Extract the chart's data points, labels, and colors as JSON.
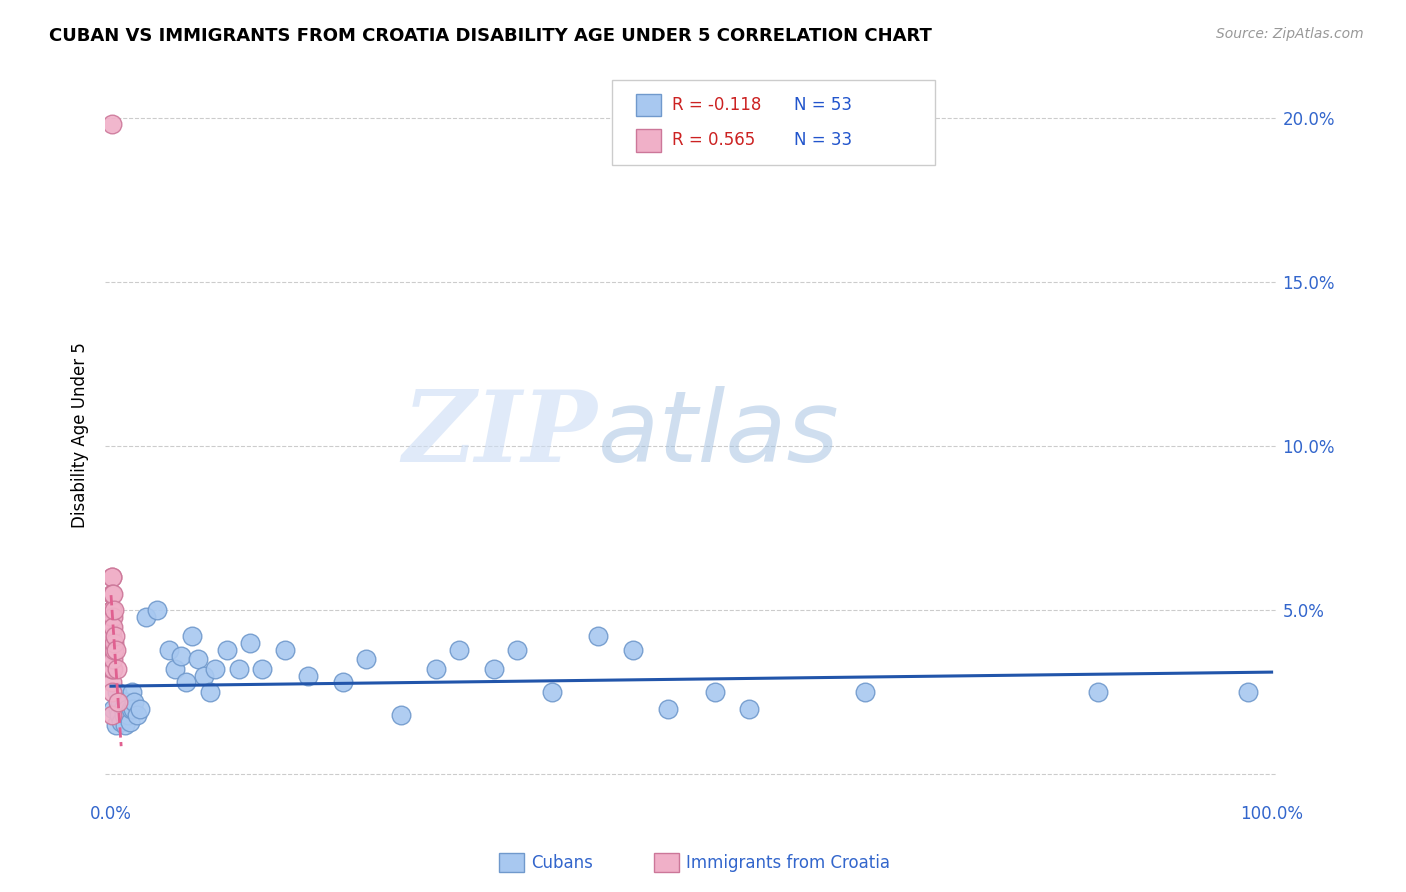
{
  "title": "CUBAN VS IMMIGRANTS FROM CROATIA DISABILITY AGE UNDER 5 CORRELATION CHART",
  "source": "Source: ZipAtlas.com",
  "tick_color": "#3366cc",
  "ylabel": "Disability Age Under 5",
  "xlim": [
    -0.005,
    1.005
  ],
  "ylim": [
    -0.008,
    0.215
  ],
  "yticks": [
    0.0,
    0.05,
    0.1,
    0.15,
    0.2
  ],
  "ytick_labels": [
    "",
    "5.0%",
    "10.0%",
    "15.0%",
    "20.0%"
  ],
  "xticks": [
    0.0,
    1.0
  ],
  "xtick_labels": [
    "0.0%",
    "100.0%"
  ],
  "grid_color": "#cccccc",
  "background_color": "#ffffff",
  "watermark_zip": "ZIP",
  "watermark_atlas": "atlas",
  "legend_r1": "R = -0.118",
  "legend_n1": "N = 53",
  "legend_r2": "R = 0.565",
  "legend_n2": "N = 33",
  "cubans_color": "#a8c8f0",
  "cubans_edge_color": "#7099cc",
  "croatia_color": "#f0b0c8",
  "croatia_edge_color": "#cc7799",
  "cubans_trendline_color": "#2255aa",
  "croatia_trendline_color": "#e06090",
  "cubans_x": [
    0.002,
    0.004,
    0.005,
    0.006,
    0.007,
    0.008,
    0.009,
    0.01,
    0.011,
    0.012,
    0.013,
    0.014,
    0.015,
    0.016,
    0.017,
    0.018,
    0.019,
    0.02,
    0.022,
    0.025,
    0.03,
    0.04,
    0.05,
    0.055,
    0.06,
    0.065,
    0.07,
    0.075,
    0.08,
    0.085,
    0.09,
    0.1,
    0.11,
    0.12,
    0.13,
    0.15,
    0.17,
    0.2,
    0.22,
    0.25,
    0.28,
    0.3,
    0.33,
    0.35,
    0.38,
    0.42,
    0.45,
    0.48,
    0.52,
    0.55,
    0.65,
    0.85,
    0.98
  ],
  "cubans_y": [
    0.02,
    0.015,
    0.025,
    0.02,
    0.018,
    0.022,
    0.016,
    0.02,
    0.018,
    0.015,
    0.022,
    0.02,
    0.018,
    0.016,
    0.02,
    0.025,
    0.02,
    0.022,
    0.018,
    0.02,
    0.048,
    0.05,
    0.038,
    0.032,
    0.036,
    0.028,
    0.042,
    0.035,
    0.03,
    0.025,
    0.032,
    0.038,
    0.032,
    0.04,
    0.032,
    0.038,
    0.03,
    0.028,
    0.035,
    0.018,
    0.032,
    0.038,
    0.032,
    0.038,
    0.025,
    0.042,
    0.038,
    0.02,
    0.025,
    0.02,
    0.025,
    0.025,
    0.025
  ],
  "croatia_x": [
    0.0005,
    0.0005,
    0.0005,
    0.0005,
    0.0005,
    0.0005,
    0.0005,
    0.0008,
    0.0008,
    0.0008,
    0.001,
    0.001,
    0.001,
    0.001,
    0.001,
    0.001,
    0.001,
    0.001,
    0.0012,
    0.0012,
    0.0015,
    0.0015,
    0.0018,
    0.002,
    0.002,
    0.002,
    0.0025,
    0.003,
    0.003,
    0.0035,
    0.004,
    0.005,
    0.006
  ],
  "croatia_y": [
    0.198,
    0.06,
    0.05,
    0.045,
    0.04,
    0.035,
    0.028,
    0.055,
    0.05,
    0.035,
    0.06,
    0.055,
    0.048,
    0.042,
    0.038,
    0.032,
    0.025,
    0.018,
    0.05,
    0.038,
    0.048,
    0.038,
    0.032,
    0.055,
    0.045,
    0.035,
    0.038,
    0.05,
    0.04,
    0.042,
    0.038,
    0.032,
    0.022
  ]
}
